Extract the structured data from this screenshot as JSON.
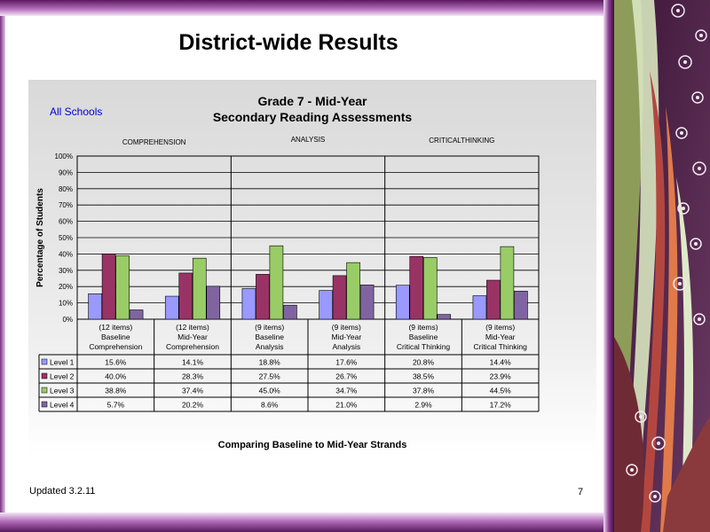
{
  "slide": {
    "title": "District-wide Results",
    "footer": "Updated  3.2.11",
    "page_number": "7"
  },
  "chart_data": {
    "type": "bar",
    "title": "Grade 7 - Mid-Year",
    "subtitle": "Secondary Reading Assessments",
    "scope_label": "All Schools",
    "group_labels": [
      "COMPREHENSION",
      "ANALYSIS",
      "CRITICALTHINKING"
    ],
    "categories": [
      [
        "(12 items)",
        "Baseline",
        "Comprehension"
      ],
      [
        "(12 items)",
        "Mid-Year",
        "Comprehension"
      ],
      [
        "(9 items)",
        "Baseline",
        "Analysis"
      ],
      [
        "(9 items)",
        "Mid-Year",
        "Analysis"
      ],
      [
        "(9 items)",
        "Baseline",
        "Critical Thinking"
      ],
      [
        "(9 items)",
        "Mid-Year",
        "Critical Thinking"
      ]
    ],
    "series": [
      {
        "name": "Level 1",
        "color": "#9999ff",
        "values": [
          15.6,
          14.1,
          18.8,
          17.6,
          20.8,
          14.4
        ]
      },
      {
        "name": "Level 2",
        "color": "#993366",
        "values": [
          40.0,
          28.3,
          27.5,
          26.7,
          38.5,
          23.9
        ]
      },
      {
        "name": "Level 3",
        "color": "#99cc66",
        "values": [
          38.8,
          37.4,
          45.0,
          34.7,
          37.8,
          44.5
        ]
      },
      {
        "name": "Level 4",
        "color": "#8064a2",
        "values": [
          5.7,
          20.2,
          8.6,
          21.0,
          2.9,
          17.2
        ]
      }
    ],
    "table_values": [
      [
        "15.6%",
        "14.1%",
        "18.8%",
        "17.6%",
        "20.8%",
        "14.4%"
      ],
      [
        "40.0%",
        "28.3%",
        "27.5%",
        "26.7%",
        "38.5%",
        "23.9%"
      ],
      [
        "38.8%",
        "37.4%",
        "45.0%",
        "34.7%",
        "37.8%",
        "44.5%"
      ],
      [
        "5.7%",
        "20.2%",
        "8.6%",
        "21.0%",
        "2.9%",
        "17.2%"
      ]
    ],
    "ylabel": "Percentage of Students",
    "xlabel": "Comparing Baseline to Mid-Year Strands",
    "yticks": [
      "0%",
      "10%",
      "20%",
      "30%",
      "40%",
      "50%",
      "60%",
      "70%",
      "80%",
      "90%",
      "100%"
    ],
    "ylim": [
      0,
      100
    ],
    "grid": true,
    "legend": "data-table"
  }
}
